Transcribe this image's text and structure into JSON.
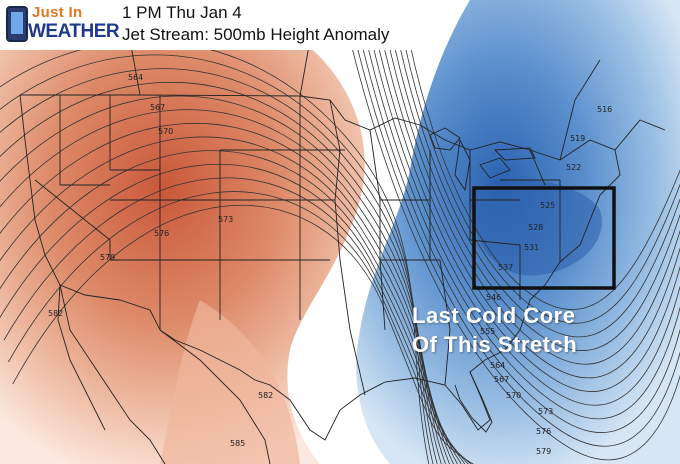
{
  "header": {
    "logo_top": "Just In",
    "logo_bottom": "WEATHER",
    "time_label": "1 PM Thu Jan 4",
    "product_label": "Jet Stream: 500mb Height Anomaly"
  },
  "annotation": {
    "line1": "Last Cold Core",
    "line2": "Of This Stretch"
  },
  "contour_labels": [
    "564",
    "567",
    "570",
    "573",
    "576",
    "579",
    "582",
    "582",
    "585",
    "516",
    "519",
    "522",
    "525",
    "528",
    "531",
    "537",
    "546",
    "555",
    "564",
    "567",
    "570",
    "573",
    "576",
    "579"
  ],
  "colors": {
    "warm_anomaly": "#d2663f",
    "cold_anomaly": "#2f6cb8",
    "highlight_box": "#111111",
    "annotation_text": "#ffffff"
  }
}
